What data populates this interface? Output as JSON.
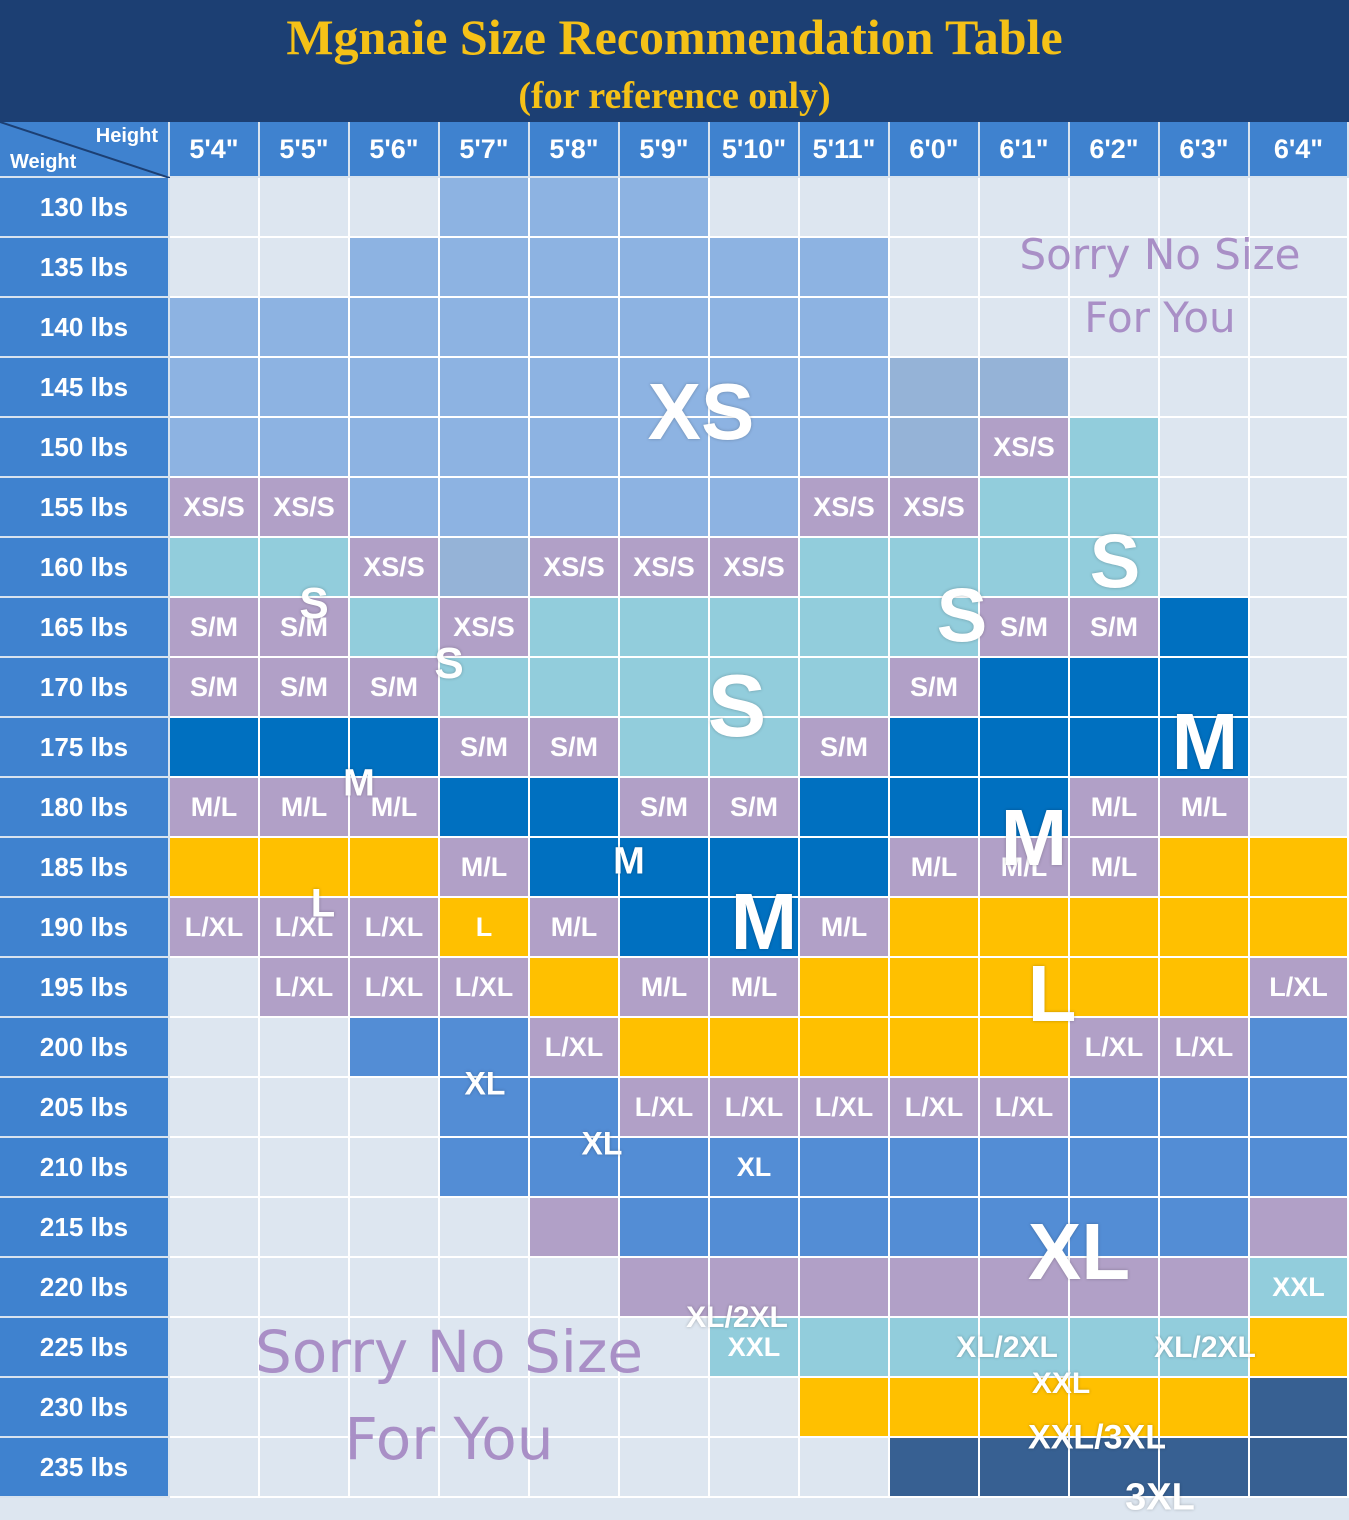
{
  "title": "Mgnaie Size Recommendation Table",
  "subtitle": "(for reference only)",
  "corner": {
    "height_label": "Height",
    "weight_label": "Weight"
  },
  "heights": [
    "5'4\"",
    "5'5\"",
    "5'6\"",
    "5'7\"",
    "5'8\"",
    "5'9\"",
    "5'10\"",
    "5'11\"",
    "6'0\"",
    "6'1\"",
    "6'2\"",
    "6'3\"",
    "6'4\""
  ],
  "weights": [
    "130 lbs",
    "135 lbs",
    "140 lbs",
    "145 lbs",
    "150 lbs",
    "155 lbs",
    "160 lbs",
    "165 lbs",
    "170 lbs",
    "175 lbs",
    "180 lbs",
    "185 lbs",
    "190 lbs",
    "195 lbs",
    "200 lbs",
    "205 lbs",
    "210 lbs",
    "215 lbs",
    "220 lbs",
    "225 lbs",
    "230 lbs",
    "235 lbs"
  ],
  "colors": {
    "none": "#dde6f0",
    "XS": "#8db3e2",
    "XS_shade": "#95b3d7",
    "XS/S": "#b1a0c7",
    "S": "#92cddc",
    "S/M": "#b1a0c7",
    "M": "#0070c0",
    "M/L": "#b1a0c7",
    "L": "#ffc000",
    "L/XL": "#b1a0c7",
    "XL": "#538dd5",
    "XL/2XL": "#b1a0c7",
    "XXL": "#92cddc",
    "XXL/3XL": "#ffc000",
    "3XL": "#376092"
  },
  "grid": [
    [
      "",
      "",
      "",
      "XS",
      "XS",
      "XS",
      "",
      "",
      "",
      "",
      "",
      "",
      ""
    ],
    [
      "",
      "",
      "XS",
      "XS",
      "XS",
      "XS",
      "XS",
      "XS",
      "",
      "",
      "",
      "",
      ""
    ],
    [
      "XS",
      "XS",
      "XS",
      "XS",
      "XS",
      "XS",
      "XS",
      "XS",
      "",
      "",
      "",
      "",
      ""
    ],
    [
      "XS",
      "XS",
      "XS",
      "XS",
      "XS",
      "XS",
      "XS",
      "XS",
      "XS_shade",
      "XS_shade",
      "",
      "",
      ""
    ],
    [
      "XS",
      "XS",
      "XS",
      "XS",
      "XS",
      "XS",
      "XS",
      "XS",
      "XS_shade",
      "XS/S",
      "S",
      "",
      ""
    ],
    [
      "XS/S",
      "XS/S",
      "XS",
      "XS",
      "XS",
      "XS",
      "XS",
      "XS/S",
      "XS/S",
      "S",
      "S",
      "",
      ""
    ],
    [
      "S",
      "S",
      "XS/S",
      "XS_shade",
      "XS/S",
      "XS/S",
      "XS/S",
      "S",
      "S",
      "S",
      "S",
      "",
      ""
    ],
    [
      "S/M",
      "S/M",
      "S",
      "XS/S",
      "S",
      "S",
      "S",
      "S",
      "S",
      "S/M",
      "S/M",
      "M",
      ""
    ],
    [
      "S/M",
      "S/M",
      "S/M",
      "S",
      "S",
      "S",
      "S",
      "S",
      "S/M",
      "M",
      "M",
      "M",
      ""
    ],
    [
      "M",
      "M",
      "M",
      "S/M",
      "S/M",
      "S",
      "S",
      "S/M",
      "M",
      "M",
      "M",
      "M",
      ""
    ],
    [
      "M/L",
      "M/L",
      "M/L",
      "M",
      "M",
      "S/M",
      "S/M",
      "M",
      "M",
      "M",
      "M/L",
      "M/L",
      ""
    ],
    [
      "L",
      "L",
      "L",
      "M/L",
      "M",
      "M",
      "M",
      "M",
      "M/L",
      "M/L",
      "M/L",
      "L",
      "L"
    ],
    [
      "L/XL",
      "L/XL",
      "L/XL",
      "L",
      "M/L",
      "M",
      "M",
      "M/L",
      "L",
      "L",
      "L",
      "L",
      "L"
    ],
    [
      "",
      "L/XL",
      "L/XL",
      "L/XL",
      "L",
      "M/L",
      "M/L",
      "L",
      "L",
      "L",
      "L",
      "L",
      "L/XL"
    ],
    [
      "",
      "",
      "XL",
      "XL",
      "L/XL",
      "L",
      "L",
      "L",
      "L",
      "L",
      "L/XL",
      "L/XL",
      "XL"
    ],
    [
      "",
      "",
      "",
      "XL",
      "XL",
      "L/XL",
      "L/XL",
      "L/XL",
      "L/XL",
      "L/XL",
      "XL",
      "XL",
      "XL"
    ],
    [
      "",
      "",
      "",
      "XL",
      "XL",
      "XL",
      "XL",
      "XL",
      "XL",
      "XL",
      "XL",
      "XL",
      "XL"
    ],
    [
      "",
      "",
      "",
      "",
      "XL/2XL",
      "XL",
      "XL",
      "XL",
      "XL",
      "XL",
      "XL",
      "XL",
      "XL/2XL"
    ],
    [
      "",
      "",
      "",
      "",
      "",
      "XL/2XL",
      "XL/2XL",
      "XL/2XL",
      "XL/2XL",
      "XL/2XL",
      "XL/2XL",
      "XL/2XL",
      "XXL"
    ],
    [
      "",
      "",
      "",
      "",
      "",
      "",
      "XXL",
      "XXL",
      "XXL",
      "XXL",
      "XXL",
      "XXL",
      "L"
    ],
    [
      "",
      "",
      "",
      "",
      "",
      "",
      "",
      "XXL/3XL",
      "XXL/3XL",
      "XXL/3XL",
      "XXL/3XL",
      "XXL/3XL",
      "3XL"
    ],
    [
      "",
      "",
      "",
      "",
      "",
      "",
      "",
      "",
      "3XL",
      "3XL",
      "3XL",
      "3XL",
      "3XL"
    ]
  ],
  "cell_labels": [
    {
      "r": 4,
      "c": 9,
      "text": "XS/S"
    },
    {
      "r": 5,
      "c": 0,
      "text": "XS/S"
    },
    {
      "r": 5,
      "c": 1,
      "text": "XS/S"
    },
    {
      "r": 5,
      "c": 7,
      "text": "XS/S"
    },
    {
      "r": 5,
      "c": 8,
      "text": "XS/S"
    },
    {
      "r": 6,
      "c": 2,
      "text": "XS/S"
    },
    {
      "r": 6,
      "c": 4,
      "text": "XS/S"
    },
    {
      "r": 6,
      "c": 5,
      "text": "XS/S"
    },
    {
      "r": 6,
      "c": 6,
      "text": "XS/S"
    },
    {
      "r": 7,
      "c": 0,
      "text": "S/M"
    },
    {
      "r": 7,
      "c": 1,
      "text": "S/M"
    },
    {
      "r": 7,
      "c": 3,
      "text": "XS/S"
    },
    {
      "r": 7,
      "c": 9,
      "text": "S/M"
    },
    {
      "r": 7,
      "c": 10,
      "text": "S/M"
    },
    {
      "r": 8,
      "c": 0,
      "text": "S/M"
    },
    {
      "r": 8,
      "c": 1,
      "text": "S/M"
    },
    {
      "r": 8,
      "c": 2,
      "text": "S/M"
    },
    {
      "r": 8,
      "c": 8,
      "text": "S/M"
    },
    {
      "r": 9,
      "c": 3,
      "text": "S/M"
    },
    {
      "r": 9,
      "c": 4,
      "text": "S/M"
    },
    {
      "r": 9,
      "c": 7,
      "text": "S/M"
    },
    {
      "r": 10,
      "c": 0,
      "text": "M/L"
    },
    {
      "r": 10,
      "c": 1,
      "text": "M/L"
    },
    {
      "r": 10,
      "c": 2,
      "text": "M/L"
    },
    {
      "r": 10,
      "c": 5,
      "text": "S/M"
    },
    {
      "r": 10,
      "c": 6,
      "text": "S/M"
    },
    {
      "r": 10,
      "c": 10,
      "text": "M/L"
    },
    {
      "r": 10,
      "c": 11,
      "text": "M/L"
    },
    {
      "r": 11,
      "c": 3,
      "text": "M/L"
    },
    {
      "r": 11,
      "c": 8,
      "text": "M/L"
    },
    {
      "r": 11,
      "c": 9,
      "text": "M/L"
    },
    {
      "r": 11,
      "c": 10,
      "text": "M/L"
    },
    {
      "r": 12,
      "c": 0,
      "text": "L/XL"
    },
    {
      "r": 12,
      "c": 1,
      "text": "L/XL"
    },
    {
      "r": 12,
      "c": 2,
      "text": "L/XL"
    },
    {
      "r": 12,
      "c": 3,
      "text": "L"
    },
    {
      "r": 12,
      "c": 4,
      "text": "M/L"
    },
    {
      "r": 12,
      "c": 7,
      "text": "M/L"
    },
    {
      "r": 13,
      "c": 1,
      "text": "L/XL"
    },
    {
      "r": 13,
      "c": 2,
      "text": "L/XL"
    },
    {
      "r": 13,
      "c": 3,
      "text": "L/XL"
    },
    {
      "r": 13,
      "c": 5,
      "text": "M/L"
    },
    {
      "r": 13,
      "c": 6,
      "text": "M/L"
    },
    {
      "r": 13,
      "c": 12,
      "text": "L/XL"
    },
    {
      "r": 14,
      "c": 4,
      "text": "L/XL"
    },
    {
      "r": 14,
      "c": 10,
      "text": "L/XL"
    },
    {
      "r": 14,
      "c": 11,
      "text": "L/XL"
    },
    {
      "r": 15,
      "c": 5,
      "text": "L/XL"
    },
    {
      "r": 15,
      "c": 6,
      "text": "L/XL"
    },
    {
      "r": 15,
      "c": 7,
      "text": "L/XL"
    },
    {
      "r": 15,
      "c": 8,
      "text": "L/XL"
    },
    {
      "r": 15,
      "c": 9,
      "text": "L/XL"
    },
    {
      "r": 16,
      "c": 6,
      "text": "XL"
    },
    {
      "r": 18,
      "c": 12,
      "text": "XXL"
    },
    {
      "r": 19,
      "c": 6,
      "text": "XXL"
    }
  ],
  "region_labels": [
    {
      "text": "XS",
      "row": 3.4,
      "col": 5.4,
      "size": 80
    },
    {
      "text": "S",
      "row": 6.6,
      "col": 1.1,
      "size": 44
    },
    {
      "text": "S",
      "row": 7.6,
      "col": 2.6,
      "size": 44
    },
    {
      "text": "S",
      "row": 8.3,
      "col": 5.8,
      "size": 88
    },
    {
      "text": "S",
      "row": 6.8,
      "col": 8.3,
      "size": 76
    },
    {
      "text": "S",
      "row": 5.9,
      "col": 10.0,
      "size": 76
    },
    {
      "text": "M",
      "row": 9.6,
      "col": 1.6,
      "size": 38
    },
    {
      "text": "M",
      "row": 10.9,
      "col": 4.6,
      "size": 38
    },
    {
      "text": "M",
      "row": 11.9,
      "col": 6.1,
      "size": 80
    },
    {
      "text": "M",
      "row": 10.5,
      "col": 9.1,
      "size": 80
    },
    {
      "text": "M",
      "row": 8.9,
      "col": 11.0,
      "size": 80
    },
    {
      "text": "L",
      "row": 11.6,
      "col": 1.2,
      "size": 40
    },
    {
      "text": "L",
      "row": 13.1,
      "col": 9.3,
      "size": 80
    },
    {
      "text": "XL",
      "row": 14.6,
      "col": 3.0,
      "size": 32
    },
    {
      "text": "XL",
      "row": 15.6,
      "col": 4.3,
      "size": 32
    },
    {
      "text": "XL",
      "row": 17.4,
      "col": 9.6,
      "size": 80
    },
    {
      "text": "XL/2XL",
      "row": 18.5,
      "col": 5.8,
      "size": 30
    },
    {
      "text": "XL/2XL",
      "row": 19.0,
      "col": 8.8,
      "size": 30
    },
    {
      "text": "XL/2XL",
      "row": 19.0,
      "col": 11.0,
      "size": 30
    },
    {
      "text": "XXL",
      "row": 19.6,
      "col": 9.4,
      "size": 30
    },
    {
      "text": "XXL/3XL",
      "row": 20.5,
      "col": 9.8,
      "size": 34
    },
    {
      "text": "3XL",
      "row": 21.5,
      "col": 10.5,
      "size": 38
    }
  ],
  "sorry_notes": [
    {
      "line1": "Sorry No Size",
      "line2": "For You",
      "row": 1.3,
      "col": 10.5,
      "size": 42
    },
    {
      "line1": "Sorry No Size",
      "line2": "For You",
      "row": 19.8,
      "col": 2.6,
      "size": 58
    }
  ]
}
